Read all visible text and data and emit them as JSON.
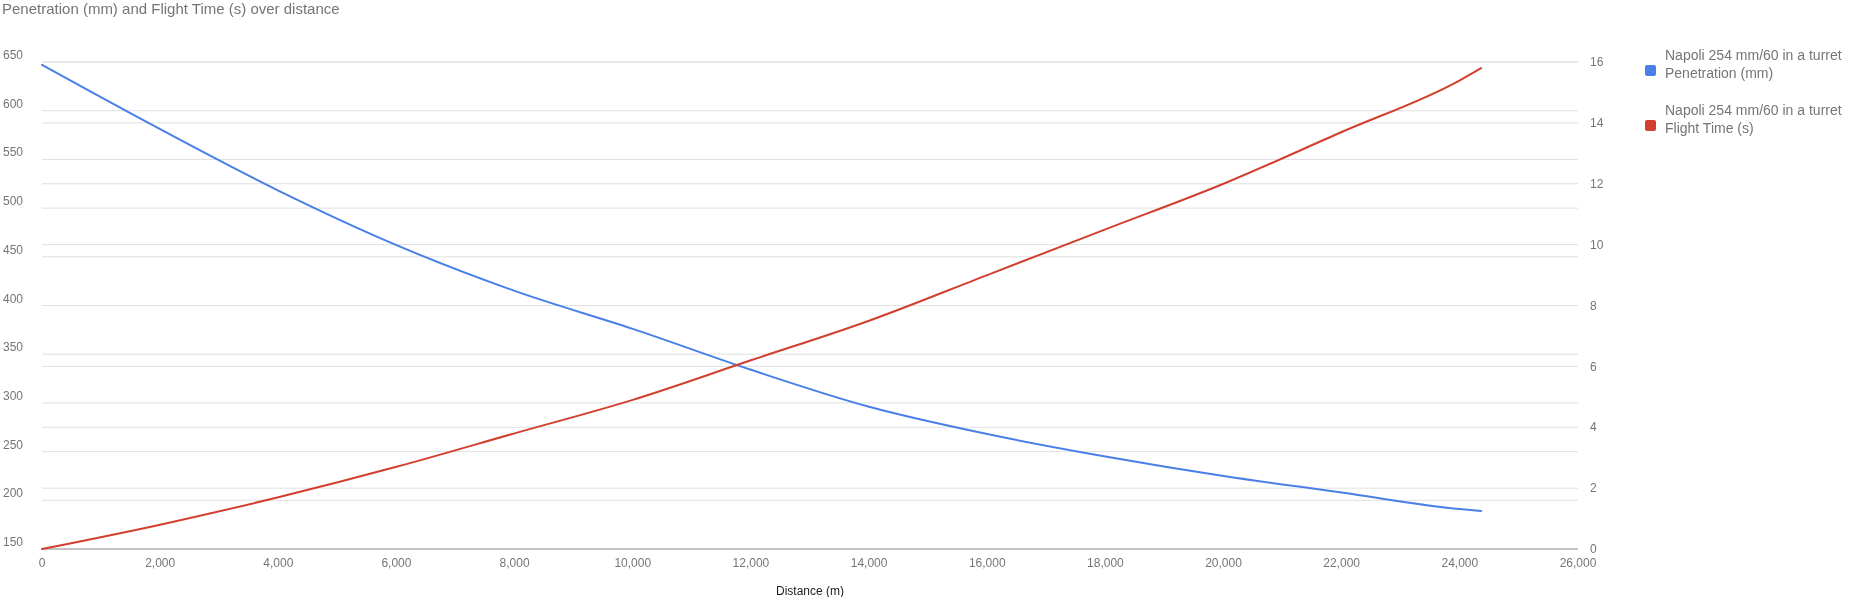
{
  "chart_data": {
    "type": "line",
    "title": "Penetration (mm) and Flight Time (s) over distance",
    "xlabel": "Distance (m)",
    "x": [
      0,
      2000,
      4000,
      6000,
      8000,
      10000,
      12000,
      14000,
      16000,
      18000,
      20000,
      22000,
      24000,
      24360
    ],
    "xlim": [
      0,
      26000
    ],
    "xticks": [
      {
        "value": 0,
        "label": "0"
      },
      {
        "value": 2000,
        "label": "2,000"
      },
      {
        "value": 4000,
        "label": "4,000"
      },
      {
        "value": 6000,
        "label": "6,000"
      },
      {
        "value": 8000,
        "label": "8,000"
      },
      {
        "value": 10000,
        "label": "10,000"
      },
      {
        "value": 12000,
        "label": "12,000"
      },
      {
        "value": 14000,
        "label": "14,000"
      },
      {
        "value": 16000,
        "label": "16,000"
      },
      {
        "value": 18000,
        "label": "18,000"
      },
      {
        "value": 20000,
        "label": "20,000"
      },
      {
        "value": 22000,
        "label": "22,000"
      },
      {
        "value": 24000,
        "label": "24,000"
      },
      {
        "value": 26000,
        "label": "26,000"
      }
    ],
    "ylim": [
      150,
      650
    ],
    "yticks": [
      150,
      200,
      250,
      300,
      350,
      400,
      450,
      500,
      550,
      600,
      650
    ],
    "y2lim": [
      0,
      16
    ],
    "y2ticks": [
      0,
      2,
      4,
      6,
      8,
      10,
      12,
      14,
      16
    ],
    "series": [
      {
        "name": "Napoli 254 mm/60 in a turret Penetration (mm)",
        "color": "#4a7fe8",
        "values": [
          647,
          581,
          518,
          462,
          415,
          376,
          334,
          296,
          268,
          245,
          225,
          208,
          191,
          189
        ]
      },
      {
        "name": "Napoli 254 mm/60 in a turret Flight Time (s)",
        "color": "#d23f2e",
        "axis": "y2",
        "values": [
          0,
          0.8,
          1.7,
          2.7,
          3.8,
          4.9,
          6.2,
          7.5,
          9.0,
          10.5,
          12.0,
          13.7,
          15.4,
          15.8
        ]
      }
    ],
    "grid": true,
    "legend": "right",
    "marker": "none",
    "line_style": "solid"
  }
}
